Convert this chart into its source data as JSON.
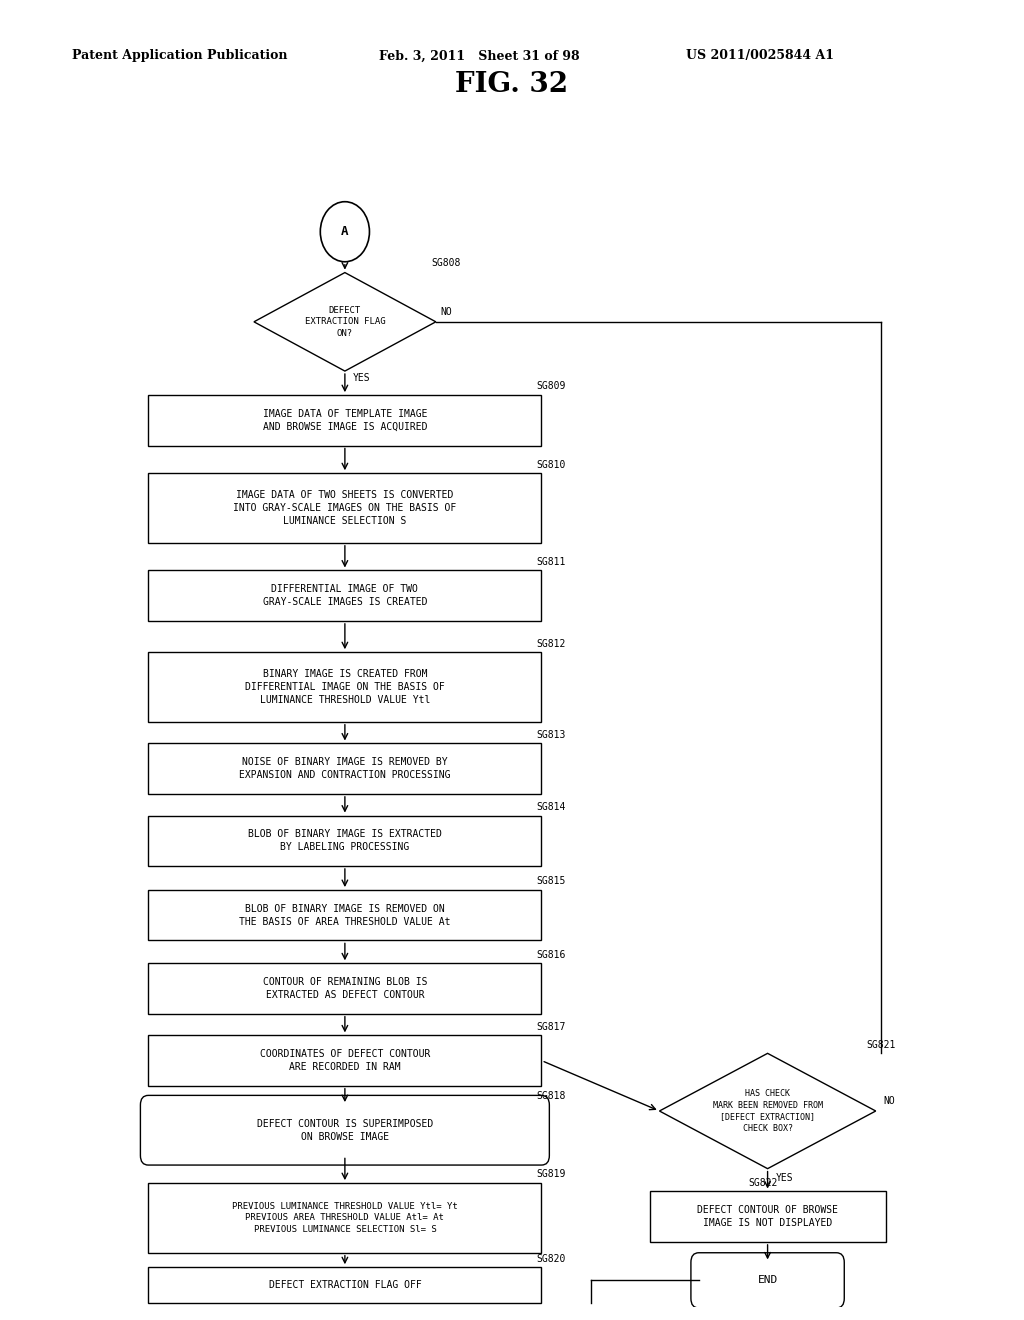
{
  "title": "FIG. 32",
  "header_left": "Patent Application Publication",
  "header_mid": "Feb. 3, 2011   Sheet 31 of 98",
  "header_right": "US 2011/0025844 A1",
  "background_color": "#ffffff",
  "fig_width": 10.24,
  "fig_height": 13.2,
  "dpi": 100
}
